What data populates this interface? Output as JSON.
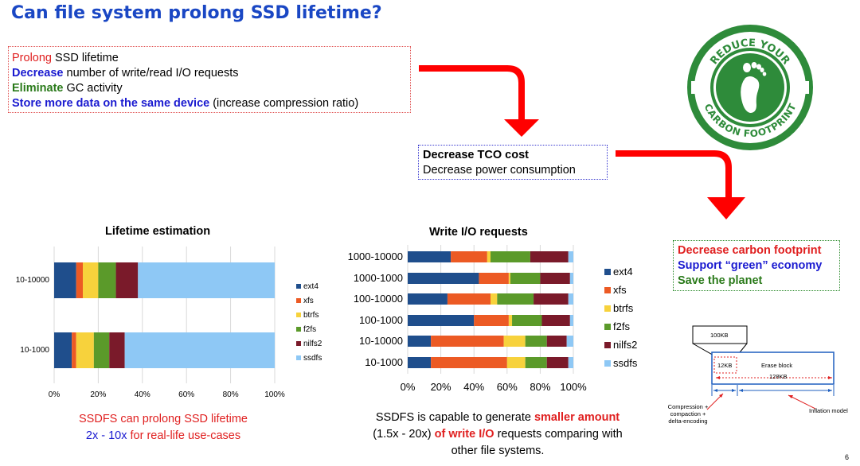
{
  "title": "Can file system prolong SSD lifetime?",
  "goals": {
    "line1_highlight": "Prolong",
    "line1_rest": " SSD lifetime",
    "line2_highlight": "Decrease",
    "line2_rest": " number of write/read I/O requests",
    "line3_highlight": "Eliminate",
    "line3_rest": " GC activity",
    "line4_highlight": "Store more data on the same device",
    "line4_rest": " (increase compression ratio)"
  },
  "tco": {
    "line1": "Decrease TCO cost",
    "line2": "Decrease power consumption"
  },
  "carbon": {
    "line1": "Decrease carbon footprint",
    "line2": "Support “green” economy",
    "line3": "Save the planet"
  },
  "badge": {
    "top_text": "REDUCE YOUR",
    "bottom_text": "CARBON FOOTPRINT"
  },
  "colors": {
    "ext4": "#1f4e8c",
    "xfs": "#ec5a24",
    "btrfs": "#f7d23c",
    "f2fs": "#5b9a2a",
    "nilfs2": "#7a1a2a",
    "ssdfs": "#8ec8f5",
    "arrow": "#ff0000",
    "badge": "#2e8b3a"
  },
  "chart_data": [
    {
      "type": "bar",
      "orientation": "horizontal",
      "stacked": true,
      "title": "Lifetime estimation",
      "categories": [
        "10-10000",
        "10-1000"
      ],
      "x_ticks": [
        "0%",
        "20%",
        "40%",
        "60%",
        "80%",
        "100%"
      ],
      "xlim": [
        0,
        100
      ],
      "series": [
        {
          "name": "ext4",
          "values": [
            10,
            8
          ]
        },
        {
          "name": "xfs",
          "values": [
            3,
            2
          ]
        },
        {
          "name": "btrfs",
          "values": [
            7,
            8
          ]
        },
        {
          "name": "f2fs",
          "values": [
            8,
            7
          ]
        },
        {
          "name": "nilfs2",
          "values": [
            10,
            7
          ]
        },
        {
          "name": "ssdfs",
          "values": [
            62,
            68
          ]
        }
      ]
    },
    {
      "type": "bar",
      "orientation": "horizontal",
      "stacked": true,
      "title": "Write I/O requests",
      "categories": [
        "1000-10000",
        "1000-1000",
        "100-10000",
        "100-1000",
        "10-10000",
        "10-1000"
      ],
      "x_ticks": [
        "0%",
        "20%",
        "40%",
        "60%",
        "80%",
        "100%"
      ],
      "xlim": [
        0,
        100
      ],
      "series": [
        {
          "name": "ext4",
          "values": [
            26,
            43,
            24,
            40,
            14,
            14
          ]
        },
        {
          "name": "xfs",
          "values": [
            22,
            18,
            26,
            21,
            44,
            46
          ]
        },
        {
          "name": "btrfs",
          "values": [
            2,
            1,
            4,
            2,
            13,
            11
          ]
        },
        {
          "name": "f2fs",
          "values": [
            24,
            18,
            22,
            18,
            13,
            13
          ]
        },
        {
          "name": "nilfs2",
          "values": [
            23,
            18,
            21,
            17,
            12,
            13
          ]
        },
        {
          "name": "ssdfs",
          "values": [
            3,
            2,
            3,
            2,
            4,
            3
          ]
        }
      ]
    }
  ],
  "caption_left": {
    "line1": "SSDFS can prolong SSD lifetime",
    "line2_blue": "2x - 10x",
    "line2_red": " for real-life use-cases"
  },
  "caption_right": {
    "line1_black": "SSDFS is capable to generate ",
    "line1_red": "smaller amount",
    "line2_black": "(1.5x - 20x) ",
    "line2_red": "of write I/O",
    "line2_rest": " requests comparing with",
    "line3": "other file systems."
  },
  "diagram": {
    "box_100kb": "100KB",
    "box_12kb": "12KB",
    "erase_block": "Erase block",
    "size_128kb": "128KB",
    "compression_label": "Compression +\ncompaction +\ndelta-encoding",
    "inflation_label": "Inflation model"
  },
  "page_number": "6"
}
